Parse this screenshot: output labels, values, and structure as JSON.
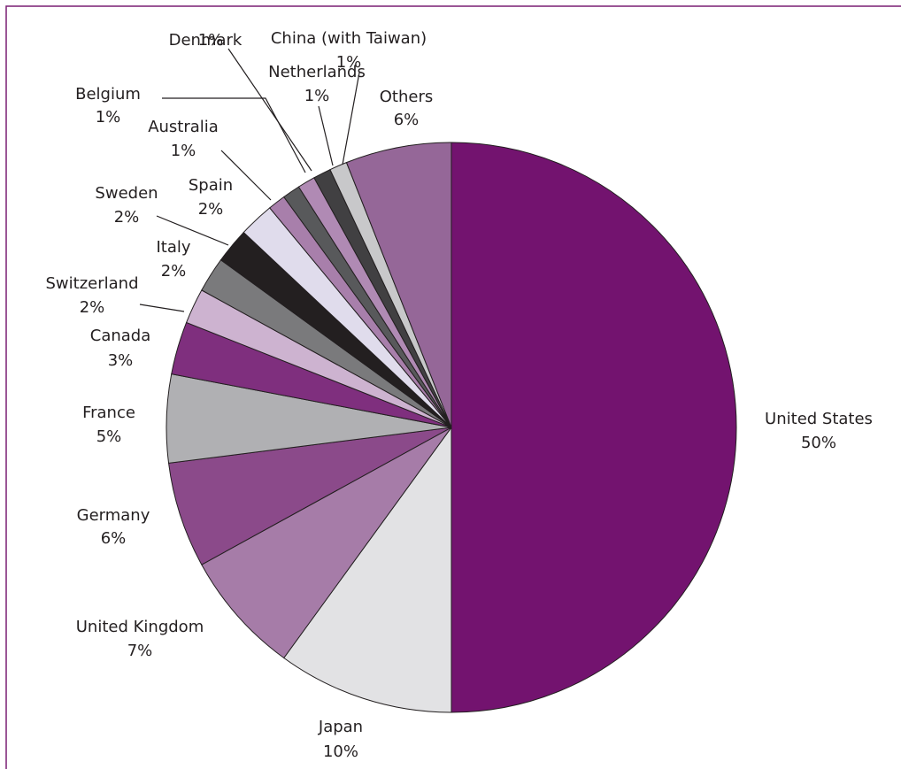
{
  "chart_data": {
    "type": "pie",
    "categories": [
      "United States",
      "Japan",
      "United Kingdom",
      "Germany",
      "France",
      "Canada",
      "Switzerland",
      "Italy",
      "Sweden",
      "Spain",
      "Australia",
      "Belgium",
      "Denmark",
      "Netherlands",
      "China (with Taiwan)",
      "Others"
    ],
    "values": [
      50,
      10,
      7,
      6,
      5,
      3,
      2,
      2,
      2,
      2,
      1,
      1,
      1,
      1,
      1,
      6
    ],
    "value_labels": [
      "50%",
      "10%",
      "7%",
      "6%",
      "5%",
      "3%",
      "2%",
      "2%",
      "2%",
      "2%",
      "1%",
      "1%",
      "1%",
      "1%",
      "1%",
      "6%"
    ],
    "colors": [
      "#73136f",
      "#e2e2e4",
      "#a67ca8",
      "#8b4a8a",
      "#b0b0b3",
      "#7f2f7e",
      "#cdb3d0",
      "#7a7a7c",
      "#231f20",
      "#e0dcec",
      "#a87fab",
      "#58595b",
      "#b08ab4",
      "#414042",
      "#c8c8ca",
      "#956798"
    ]
  }
}
